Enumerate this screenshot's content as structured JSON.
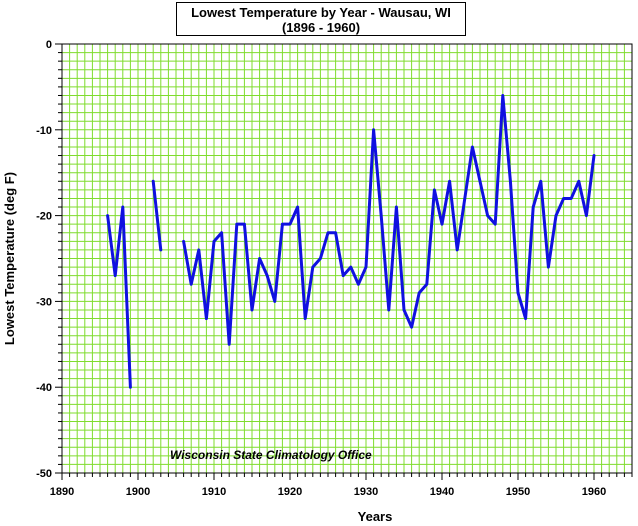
{
  "chart_data": {
    "type": "line",
    "title": "Lowest Temperature by Year - Wausau, WI",
    "subtitle": "(1896 - 1960)",
    "xlabel": "Years",
    "ylabel": "Lowest Temperature (deg F)",
    "xlim": [
      1890,
      1965
    ],
    "ylim": [
      -50,
      0
    ],
    "x_ticks": [
      1890,
      1900,
      1910,
      1920,
      1930,
      1940,
      1950,
      1960
    ],
    "y_ticks": [
      0,
      -10,
      -20,
      -30,
      -40,
      -50
    ],
    "grid": true,
    "annotation": "Wisconsin State Climatology Office",
    "colors": {
      "line": "#1010e0",
      "grid": "#7fdc2e",
      "plot_background": "#ffffff"
    },
    "series": [
      {
        "segments": [
          [
            [
              1896,
              -20
            ],
            [
              1897,
              -27
            ],
            [
              1898,
              -19
            ],
            [
              1899,
              -40
            ]
          ],
          [
            [
              1902,
              -16
            ],
            [
              1903,
              -24
            ]
          ],
          [
            [
              1906,
              -23
            ],
            [
              1907,
              -28
            ],
            [
              1908,
              -24
            ],
            [
              1909,
              -32
            ],
            [
              1910,
              -23
            ],
            [
              1911,
              -22
            ],
            [
              1912,
              -35
            ],
            [
              1913,
              -21
            ],
            [
              1914,
              -21
            ],
            [
              1915,
              -31
            ],
            [
              1916,
              -25
            ],
            [
              1917,
              -27
            ],
            [
              1918,
              -30
            ],
            [
              1919,
              -21
            ],
            [
              1920,
              -21
            ],
            [
              1921,
              -19
            ],
            [
              1922,
              -32
            ],
            [
              1923,
              -26
            ],
            [
              1924,
              -25
            ],
            [
              1925,
              -22
            ],
            [
              1926,
              -22
            ],
            [
              1927,
              -27
            ],
            [
              1928,
              -26
            ],
            [
              1929,
              -28
            ],
            [
              1930,
              -26
            ],
            [
              1931,
              -10
            ],
            [
              1932,
              -20
            ],
            [
              1933,
              -31
            ],
            [
              1934,
              -19
            ],
            [
              1935,
              -31
            ],
            [
              1936,
              -33
            ],
            [
              1937,
              -29
            ],
            [
              1938,
              -28
            ],
            [
              1939,
              -17
            ],
            [
              1940,
              -21
            ],
            [
              1941,
              -16
            ],
            [
              1942,
              -24
            ],
            [
              1943,
              -18
            ],
            [
              1944,
              -12
            ],
            [
              1945,
              -16
            ],
            [
              1946,
              -20
            ],
            [
              1947,
              -21
            ],
            [
              1948,
              -6
            ],
            [
              1949,
              -16
            ],
            [
              1950,
              -29
            ],
            [
              1951,
              -32
            ],
            [
              1952,
              -19
            ],
            [
              1953,
              -16
            ],
            [
              1954,
              -26
            ],
            [
              1955,
              -20
            ],
            [
              1956,
              -18
            ],
            [
              1957,
              -18
            ],
            [
              1958,
              -16
            ],
            [
              1959,
              -20
            ],
            [
              1960,
              -13
            ]
          ]
        ]
      }
    ]
  }
}
